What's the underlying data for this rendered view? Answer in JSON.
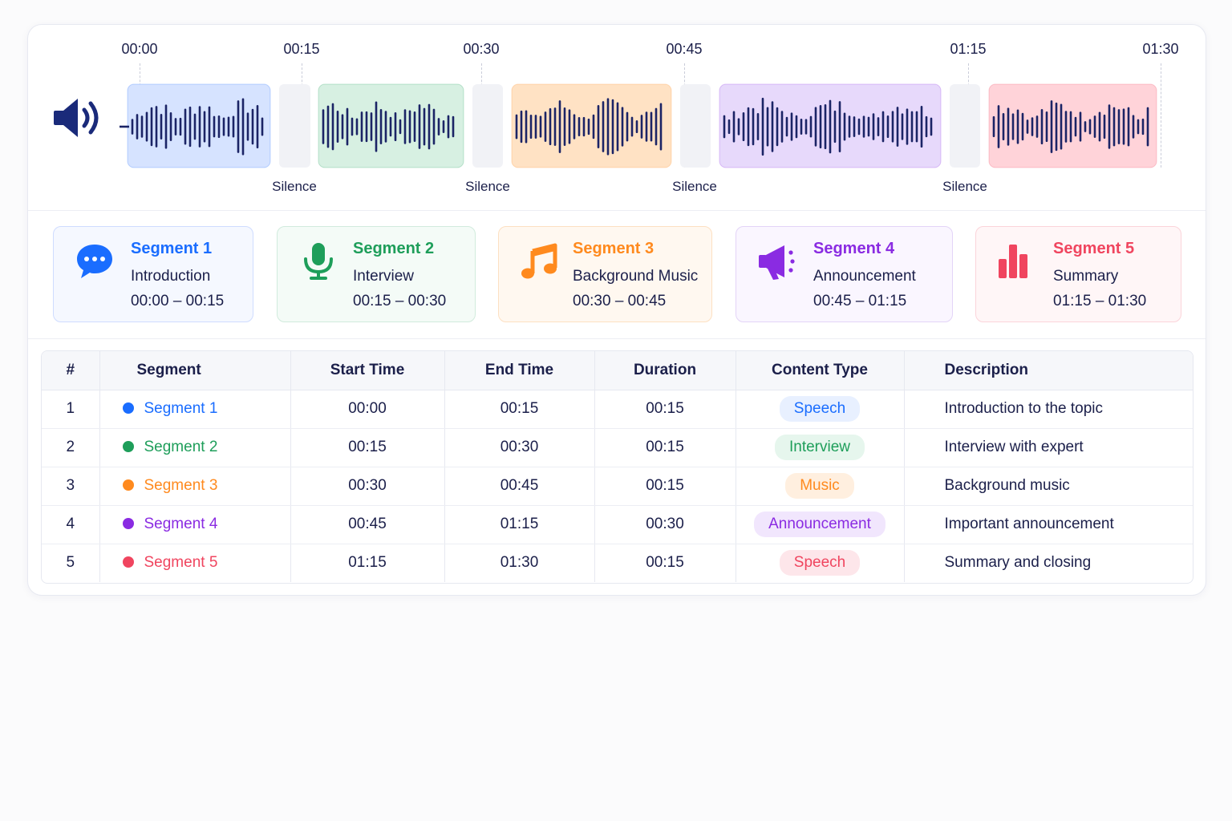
{
  "timeline": {
    "ticks": [
      "00:00",
      "00:15",
      "00:30",
      "00:45",
      "01:15",
      "01:30"
    ],
    "silence_label": "Silence",
    "segments": [
      {
        "id": 1,
        "color": "#1a6dff"
      },
      {
        "id": 2,
        "color": "#1e9e5a"
      },
      {
        "id": 3,
        "color": "#ff8a1e"
      },
      {
        "id": 4,
        "color": "#8a2be2"
      },
      {
        "id": 5,
        "color": "#f0455f"
      }
    ]
  },
  "cards": [
    {
      "title": "Segment 1",
      "subtitle": "Introduction",
      "range": "00:00 – 00:15",
      "icon": "chat-bubble-icon",
      "color": "#1a6dff"
    },
    {
      "title": "Segment 2",
      "subtitle": "Interview",
      "range": "00:15 – 00:30",
      "icon": "microphone-icon",
      "color": "#1e9e5a"
    },
    {
      "title": "Segment 3",
      "subtitle": "Background Music",
      "range": "00:30 – 00:45",
      "icon": "music-note-icon",
      "color": "#ff8a1e"
    },
    {
      "title": "Segment 4",
      "subtitle": "Announcement",
      "range": "00:45 – 01:15",
      "icon": "megaphone-icon",
      "color": "#8a2be2"
    },
    {
      "title": "Segment 5",
      "subtitle": "Summary",
      "range": "01:15 – 01:30",
      "icon": "bar-chart-icon",
      "color": "#f0455f"
    }
  ],
  "table": {
    "headers": [
      "#",
      "Segment",
      "Start Time",
      "End Time",
      "Duration",
      "Content Type",
      "Description"
    ],
    "rows": [
      {
        "num": "1",
        "segment": "Segment 1",
        "start": "00:00",
        "end": "00:15",
        "duration": "00:15",
        "type": "Speech",
        "description": "Introduction to the topic",
        "color": "#1a6dff"
      },
      {
        "num": "2",
        "segment": "Segment 2",
        "start": "00:15",
        "end": "00:30",
        "duration": "00:15",
        "type": "Interview",
        "description": "Interview with expert",
        "color": "#1e9e5a"
      },
      {
        "num": "3",
        "segment": "Segment 3",
        "start": "00:30",
        "end": "00:45",
        "duration": "00:15",
        "type": "Music",
        "description": "Background music",
        "color": "#ff8a1e"
      },
      {
        "num": "4",
        "segment": "Segment 4",
        "start": "00:45",
        "end": "01:15",
        "duration": "00:30",
        "type": "Announcement",
        "description": "Important announcement",
        "color": "#8a2be2"
      },
      {
        "num": "5",
        "segment": "Segment 5",
        "start": "01:15",
        "end": "01:30",
        "duration": "00:15",
        "type": "Speech",
        "description": "Summary and closing",
        "color": "#f0455f"
      }
    ]
  }
}
